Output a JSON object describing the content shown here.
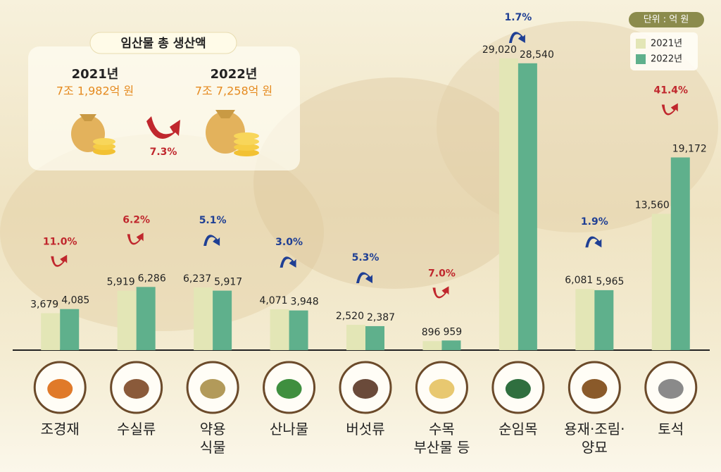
{
  "chart_data": {
    "type": "bar",
    "unit": "단위 : 억 원",
    "categories": [
      "조경재",
      "수실류",
      "약용\n식물",
      "산나물",
      "버섯류",
      "수목\n부산물 등",
      "순임목",
      "용재·조림·\n양묘",
      "토석"
    ],
    "series": [
      {
        "name": "2021년",
        "color": "#e3e6b6",
        "values": [
          3679,
          5919,
          6237,
          4071,
          2520,
          896,
          29020,
          6081,
          13560
        ],
        "value_labels": [
          "3,679",
          "5,919",
          "6,237",
          "4,071",
          "2,520",
          "896",
          "29,020",
          "6,081",
          "13,560"
        ]
      },
      {
        "name": "2022년",
        "color": "#5fb08c",
        "values": [
          4085,
          6286,
          5917,
          3948,
          2387,
          959,
          28540,
          5965,
          19172
        ],
        "value_labels": [
          "4,085",
          "6,286",
          "5,917",
          "3,948",
          "2,387",
          "959",
          "28,540",
          "5,965",
          "19,172"
        ]
      }
    ],
    "changes": [
      {
        "label": "11.0%",
        "direction": "up"
      },
      {
        "label": "6.2%",
        "direction": "up"
      },
      {
        "label": "5.1%",
        "direction": "down"
      },
      {
        "label": "3.0%",
        "direction": "down"
      },
      {
        "label": "5.3%",
        "direction": "down"
      },
      {
        "label": "7.0%",
        "direction": "up"
      },
      {
        "label": "1.7%",
        "direction": "down"
      },
      {
        "label": "1.9%",
        "direction": "down"
      },
      {
        "label": "41.4%",
        "direction": "up"
      }
    ],
    "ylim": [
      0,
      30000
    ],
    "summary": {
      "title": "임산물 총 생산액",
      "year1": "2021년",
      "amount1": "7조 1,982억 원",
      "year2": "2022년",
      "amount2": "7조 7,258억 원",
      "change": "7.3%"
    }
  }
}
